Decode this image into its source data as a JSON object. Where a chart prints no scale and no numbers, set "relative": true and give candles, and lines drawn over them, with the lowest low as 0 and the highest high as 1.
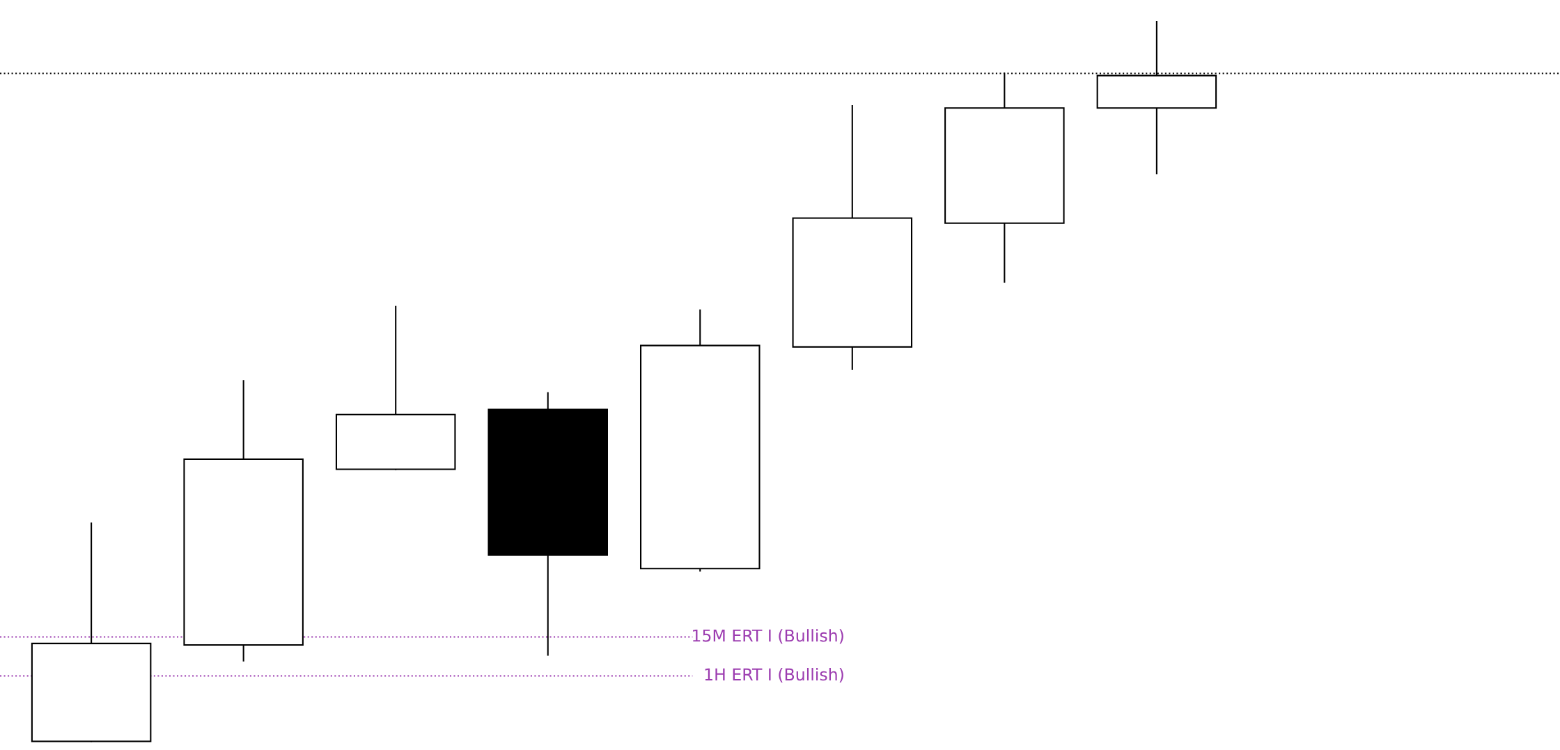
{
  "chart_data": {
    "type": "candlestick",
    "relative": true,
    "categories": [
      null,
      null,
      null,
      null,
      null,
      null,
      null,
      null
    ],
    "ohlc": [
      [
        0,
        0.303,
        0,
        0.136
      ],
      [
        0.134,
        0.501,
        0.112,
        0.392
      ],
      [
        0.378,
        0.604,
        0.378,
        0.454
      ],
      [
        0.461,
        0.484,
        0.12,
        0.259
      ],
      [
        0.24,
        0.599,
        0.237,
        0.55
      ],
      [
        0.548,
        0.883,
        0.517,
        0.727
      ],
      [
        0.72,
        0.928,
        0.638,
        0.88
      ],
      [
        0.88,
        1,
        0.789,
        0.925
      ]
    ],
    "ref_lines": [
      {
        "axis": "y",
        "value": 0.145,
        "label": "15M ERT I (Bullish)",
        "color": "#9c3cb0",
        "line_style": "dotted"
      },
      {
        "axis": "y",
        "value": 0.091,
        "label": "1H ERT I (Bullish)",
        "color": "#9c3cb0",
        "line_style": "dotted"
      },
      {
        "axis": "y",
        "value": 0.928,
        "color": "#000000",
        "line_style": "dotted"
      }
    ],
    "data_labels": false
  }
}
